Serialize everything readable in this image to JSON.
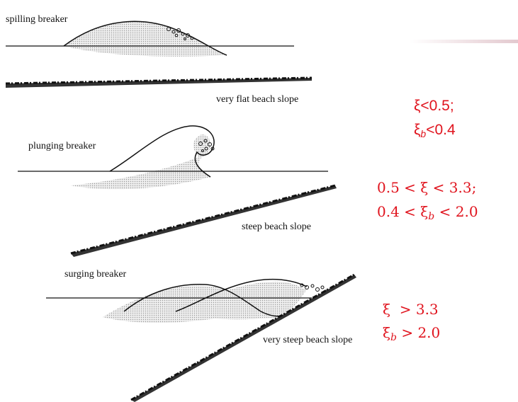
{
  "colors": {
    "condition_text": "#e0141e",
    "accent_bar": "#e3c9cf",
    "water_fill": "#dcdcdc",
    "line": "#111111"
  },
  "breakers": [
    {
      "type": "spilling breaker",
      "slope": "very flat beach slope",
      "cond1": "ξ<0.5;",
      "cond2": "ξ",
      "cond2_sub": "b",
      "cond2_rest": "<0.4"
    },
    {
      "type": "plunging breaker",
      "slope": "steep beach slope",
      "cond1": "0.5 < ξ < 3.3;",
      "cond2": "0.4 < ξ",
      "cond2_sub": "b",
      "cond2_rest": " < 2.0"
    },
    {
      "type": "surging breaker",
      "slope": "very steep beach slope",
      "cond1": "ξ  > 3.3",
      "cond2": "ξ",
      "cond2_sub": "b",
      "cond2_rest": " > 2.0"
    }
  ]
}
